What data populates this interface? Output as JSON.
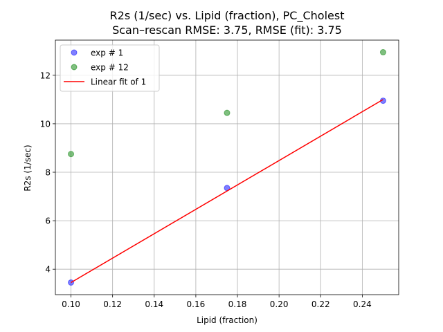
{
  "chart_data": {
    "type": "scatter",
    "title": "R2s (1/sec) vs. Lipid (fraction), PC_Cholest",
    "subtitle": "Scan–rescan RMSE: 3.75, RMSE (fit): 3.75",
    "xlabel": "Lipid (fraction)",
    "ylabel": "R2s (1/sec)",
    "xlim": [
      0.0925,
      0.2575
    ],
    "ylim": [
      2.95,
      13.45
    ],
    "xticks": [
      0.1,
      0.12,
      0.14,
      0.16,
      0.18,
      0.2,
      0.22,
      0.24
    ],
    "xtick_labels": [
      "0.10",
      "0.12",
      "0.14",
      "0.16",
      "0.18",
      "0.20",
      "0.22",
      "0.24"
    ],
    "yticks": [
      4,
      6,
      8,
      10,
      12
    ],
    "ytick_labels": [
      "4",
      "6",
      "8",
      "10",
      "12"
    ],
    "grid": true,
    "legend_position": "top-left",
    "series": [
      {
        "name": "exp # 1",
        "kind": "scatter",
        "color": "#0000ff",
        "points": [
          {
            "x": 0.1,
            "y": 3.45
          },
          {
            "x": 0.175,
            "y": 7.35
          },
          {
            "x": 0.25,
            "y": 10.95
          }
        ]
      },
      {
        "name": "exp # 12",
        "kind": "scatter",
        "color": "#008000",
        "points": [
          {
            "x": 0.1,
            "y": 8.75
          },
          {
            "x": 0.175,
            "y": 10.45
          },
          {
            "x": 0.25,
            "y": 12.95
          }
        ]
      },
      {
        "name": "Linear fit of 1",
        "kind": "line",
        "color": "#ff0000",
        "points": [
          {
            "x": 0.1,
            "y": 3.45
          },
          {
            "x": 0.25,
            "y": 11.0
          }
        ]
      }
    ]
  }
}
